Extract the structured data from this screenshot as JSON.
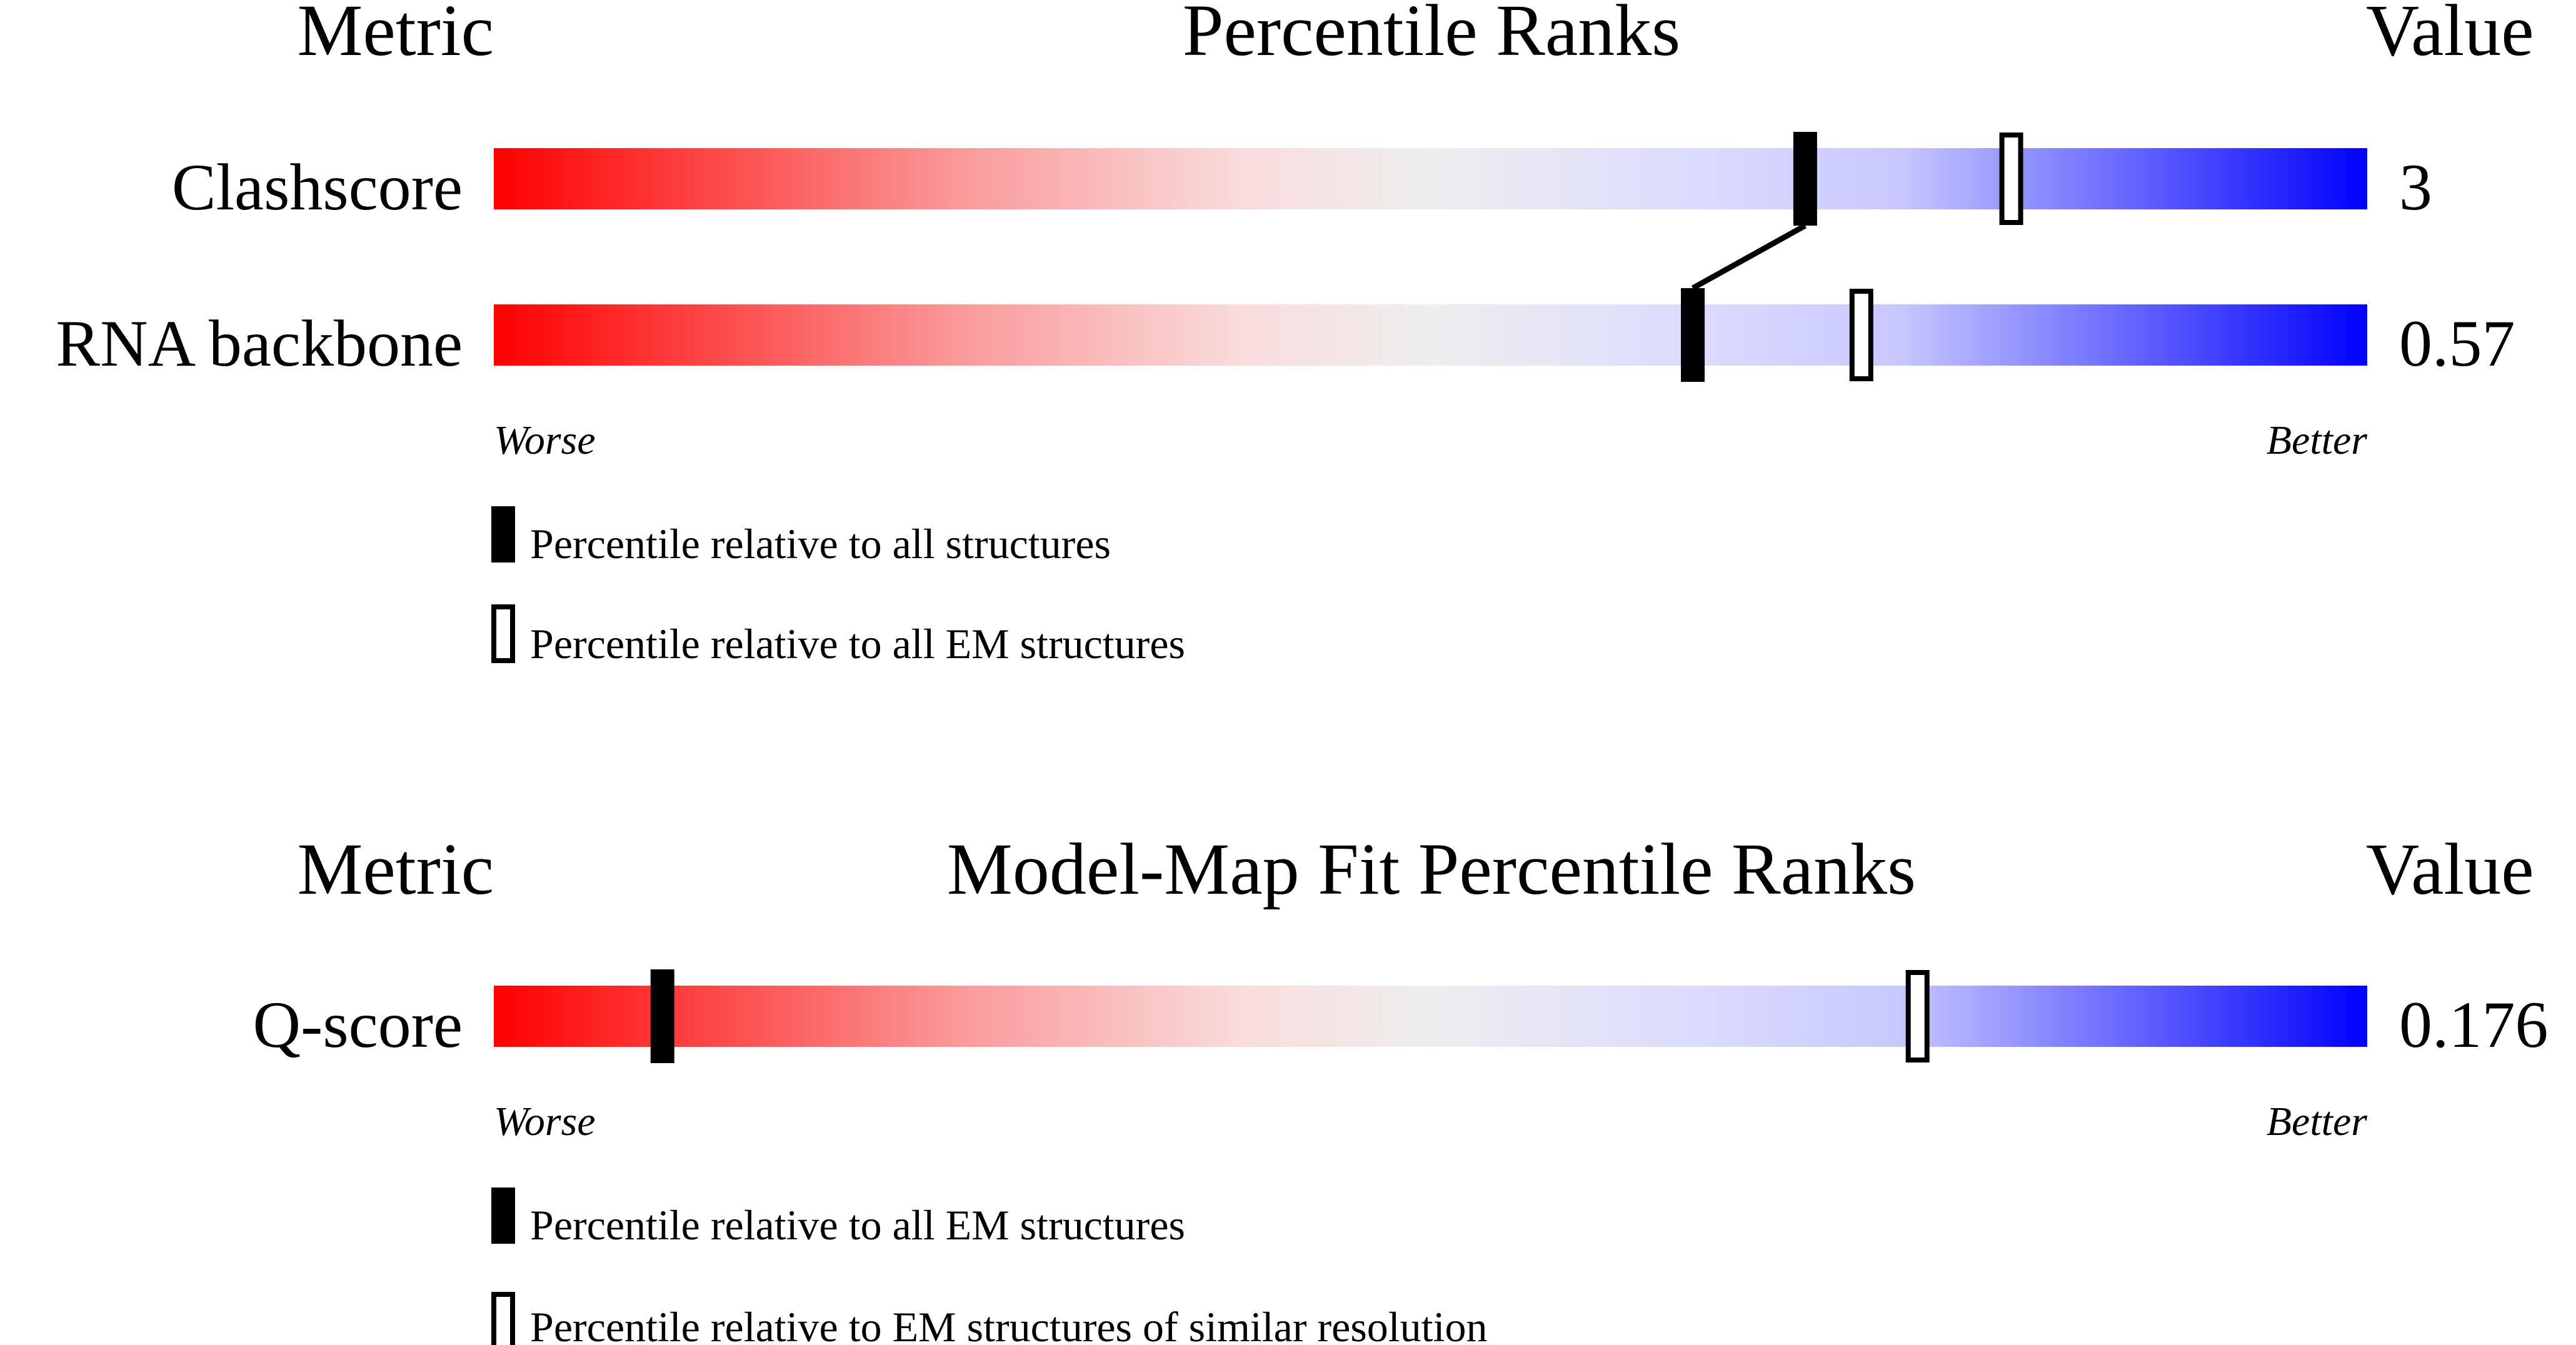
{
  "colors": {
    "worse": "#ff0000",
    "neutral": "#eeeeee",
    "mid_blue": "#d8d8ff",
    "better": "#0000ff",
    "marker": "#000000"
  },
  "chart_data": [
    {
      "type": "percentile-rank-bar",
      "headers": {
        "metric": "Metric",
        "title": "Percentile Ranks",
        "value": "Value"
      },
      "axis_min_label": "Worse",
      "axis_max_label": "Better",
      "xlim": [
        0,
        100
      ],
      "rows": [
        {
          "metric": "Clashscore",
          "value": "3",
          "percentile_all": 70,
          "percentile_em": 81
        },
        {
          "metric": "RNA backbone",
          "value": "0.57",
          "percentile_all": 64,
          "percentile_em": 73
        }
      ],
      "legend": [
        {
          "symbol": "filled",
          "label": "Percentile relative to all structures"
        },
        {
          "symbol": "open",
          "label": "Percentile relative to all EM structures"
        }
      ]
    },
    {
      "type": "percentile-rank-bar",
      "headers": {
        "metric": "Metric",
        "title": "Model-Map Fit Percentile Ranks",
        "value": "Value"
      },
      "axis_min_label": "Worse",
      "axis_max_label": "Better",
      "xlim": [
        0,
        100
      ],
      "rows": [
        {
          "metric": "Q-score",
          "value": "0.176",
          "percentile_all": 9,
          "percentile_em": 76
        }
      ],
      "legend": [
        {
          "symbol": "filled",
          "label": "Percentile relative to all EM structures"
        },
        {
          "symbol": "open",
          "label": "Percentile relative to EM structures of similar resolution"
        }
      ]
    }
  ]
}
